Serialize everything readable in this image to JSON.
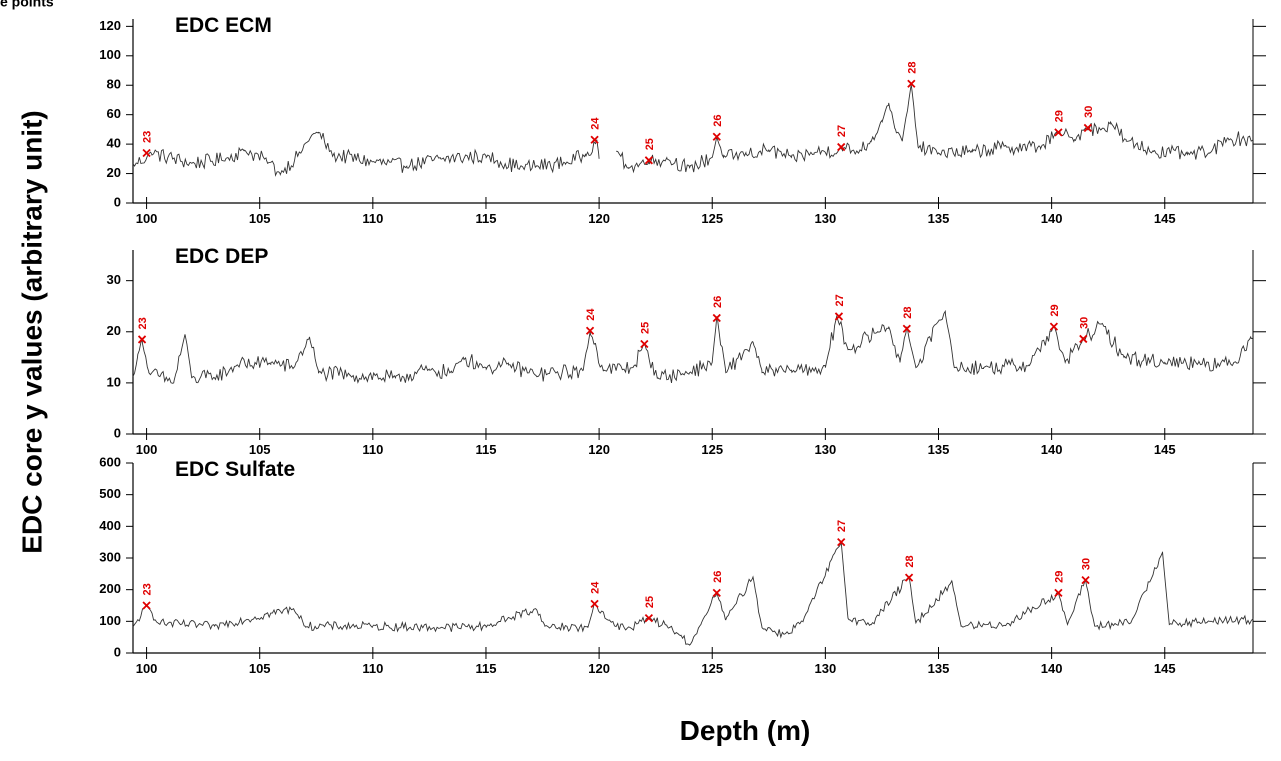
{
  "corner_label": "e points",
  "chart_data": {
    "type": "line",
    "ylabel": "EDC core y values (arbitrary unit)",
    "xlabel": "Depth (m)",
    "xlim": [
      99.4,
      148.9
    ],
    "x_ticks": [
      100,
      105,
      110,
      115,
      120,
      125,
      130,
      135,
      140,
      145
    ],
    "grid": false,
    "panels": [
      {
        "title": "EDC ECM",
        "ylim": [
          0,
          125
        ],
        "y_ticks": [
          0,
          20,
          40,
          60,
          80,
          100,
          120
        ],
        "gaps": [
          [
            120.0,
            120.7
          ]
        ],
        "baseline": 29,
        "noise": 5,
        "series": {
          "anchors": [
            [
              99.5,
              26
            ],
            [
              100.2,
              34
            ],
            [
              102,
              27
            ],
            [
              103.5,
              30
            ],
            [
              104.3,
              36
            ],
            [
              105.3,
              29
            ],
            [
              105.9,
              20
            ],
            [
              106.8,
              34
            ],
            [
              107.3,
              46
            ],
            [
              107.6,
              48
            ],
            [
              108.2,
              33
            ],
            [
              110,
              28
            ],
            [
              111.5,
              25
            ],
            [
              113,
              30
            ],
            [
              115,
              32
            ],
            [
              116.5,
              24
            ],
            [
              118.5,
              27
            ],
            [
              119.4,
              33
            ],
            [
              119.9,
              43
            ],
            [
              120.0,
              30
            ],
            [
              120.7,
              36
            ],
            [
              121.3,
              24
            ],
            [
              122.2,
              28
            ],
            [
              123,
              30
            ],
            [
              124,
              24
            ],
            [
              125,
              31
            ],
            [
              125.2,
              45
            ],
            [
              125.5,
              31
            ],
            [
              126.5,
              33
            ],
            [
              127.5,
              36
            ],
            [
              128.5,
              31
            ],
            [
              129.5,
              34
            ],
            [
              130.8,
              37
            ],
            [
              131.5,
              35
            ],
            [
              132,
              42
            ],
            [
              132.5,
              56
            ],
            [
              132.8,
              68
            ],
            [
              133.1,
              50
            ],
            [
              133.4,
              42
            ],
            [
              133.8,
              80
            ],
            [
              134.1,
              38
            ],
            [
              135,
              34
            ],
            [
              136.5,
              35
            ],
            [
              138,
              38
            ],
            [
              139.5,
              38
            ],
            [
              140.3,
              48
            ],
            [
              141,
              43
            ],
            [
              141.5,
              51
            ],
            [
              142.2,
              50
            ],
            [
              142.6,
              55
            ],
            [
              143.3,
              42
            ],
            [
              144.5,
              35
            ],
            [
              146,
              33
            ],
            [
              147,
              34
            ],
            [
              147.8,
              44
            ],
            [
              148.9,
              43
            ]
          ]
        },
        "events": [
          {
            "label": "23",
            "x": 100.0,
            "y": 34
          },
          {
            "label": "24",
            "x": 119.8,
            "y": 43
          },
          {
            "label": "25",
            "x": 122.2,
            "y": 29
          },
          {
            "label": "26",
            "x": 125.2,
            "y": 45
          },
          {
            "label": "27",
            "x": 130.7,
            "y": 38
          },
          {
            "label": "28",
            "x": 133.8,
            "y": 81
          },
          {
            "label": "29",
            "x": 140.3,
            "y": 48
          },
          {
            "label": "30",
            "x": 141.6,
            "y": 51
          }
        ]
      },
      {
        "title": "EDC DEP",
        "ylim": [
          0,
          36
        ],
        "y_ticks": [
          0,
          10,
          20,
          30
        ],
        "gaps": [],
        "baseline": 12.5,
        "noise": 1.5,
        "series": {
          "anchors": [
            [
              99.4,
              11
            ],
            [
              99.6,
              15
            ],
            [
              99.8,
              18.5
            ],
            [
              100.1,
              12
            ],
            [
              101.2,
              10
            ],
            [
              101.7,
              19.5
            ],
            [
              102,
              11
            ],
            [
              103,
              11
            ],
            [
              104,
              13.5
            ],
            [
              105.5,
              14
            ],
            [
              106.5,
              13
            ],
            [
              107.2,
              19
            ],
            [
              107.6,
              12
            ],
            [
              109,
              11.5
            ],
            [
              111,
              11
            ],
            [
              112.5,
              12.5
            ],
            [
              113.5,
              12
            ],
            [
              114,
              15
            ],
            [
              115,
              13
            ],
            [
              116,
              13.5
            ],
            [
              117.2,
              11.5
            ],
            [
              119.3,
              12.5
            ],
            [
              119.6,
              20
            ],
            [
              120.2,
              12.5
            ],
            [
              121.5,
              13
            ],
            [
              122,
              17.5
            ],
            [
              122.6,
              11
            ],
            [
              124,
              12
            ],
            [
              125,
              14
            ],
            [
              125.2,
              23
            ],
            [
              125.6,
              12
            ],
            [
              126.8,
              18
            ],
            [
              127.2,
              12
            ],
            [
              128.5,
              12.5
            ],
            [
              130,
              13
            ],
            [
              130.5,
              23
            ],
            [
              131,
              16.5
            ],
            [
              132.3,
              20
            ],
            [
              132.8,
              21
            ],
            [
              133.3,
              14
            ],
            [
              133.6,
              21
            ],
            [
              134,
              13
            ],
            [
              135.3,
              24
            ],
            [
              135.7,
              13
            ],
            [
              137,
              13
            ],
            [
              139,
              13.5
            ],
            [
              140.1,
              21
            ],
            [
              140.6,
              14
            ],
            [
              141.4,
              18.5
            ],
            [
              142.2,
              21.5
            ],
            [
              143.2,
              15
            ],
            [
              145,
              14
            ],
            [
              146.5,
              14
            ],
            [
              148,
              13.5
            ],
            [
              148.8,
              19
            ]
          ]
        },
        "events": [
          {
            "label": "23",
            "x": 99.8,
            "y": 18.5
          },
          {
            "label": "24",
            "x": 119.6,
            "y": 20.2
          },
          {
            "label": "25",
            "x": 122.0,
            "y": 17.6
          },
          {
            "label": "26",
            "x": 125.2,
            "y": 22.7
          },
          {
            "label": "27",
            "x": 130.6,
            "y": 23
          },
          {
            "label": "28",
            "x": 133.6,
            "y": 20.6
          },
          {
            "label": "29",
            "x": 140.1,
            "y": 21
          },
          {
            "label": "30",
            "x": 141.4,
            "y": 18.6
          }
        ]
      },
      {
        "title": "EDC Sulfate",
        "ylim": [
          0,
          600
        ],
        "y_ticks": [
          0,
          100,
          200,
          300,
          400,
          500,
          600
        ],
        "gaps": [],
        "baseline": 85,
        "noise": 14,
        "series": {
          "anchors": [
            [
              99.4,
              80
            ],
            [
              100,
              150
            ],
            [
              100.5,
              95
            ],
            [
              103,
              85
            ],
            [
              106.5,
              140
            ],
            [
              107,
              85
            ],
            [
              110,
              85
            ],
            [
              113,
              80
            ],
            [
              115,
              85
            ],
            [
              117.2,
              140
            ],
            [
              117.6,
              85
            ],
            [
              119.5,
              80
            ],
            [
              119.8,
              155
            ],
            [
              120.5,
              100
            ],
            [
              121.2,
              75
            ],
            [
              122.2,
              110
            ],
            [
              123,
              85
            ],
            [
              123.6,
              55
            ],
            [
              124,
              25
            ],
            [
              124.5,
              90
            ],
            [
              125.2,
              190
            ],
            [
              125.6,
              105
            ],
            [
              126.8,
              240
            ],
            [
              127.2,
              80
            ],
            [
              128.2,
              60
            ],
            [
              129,
              100
            ],
            [
              130.7,
              350
            ],
            [
              131,
              110
            ],
            [
              132,
              90
            ],
            [
              133.7,
              240
            ],
            [
              134,
              95
            ],
            [
              135.6,
              225
            ],
            [
              136,
              85
            ],
            [
              138,
              90
            ],
            [
              140.3,
              190
            ],
            [
              140.7,
              90
            ],
            [
              141.5,
              230
            ],
            [
              141.9,
              85
            ],
            [
              143.5,
              95
            ],
            [
              144.9,
              320
            ],
            [
              145.2,
              90
            ],
            [
              147,
              100
            ],
            [
              148.9,
              105
            ]
          ]
        },
        "events": [
          {
            "label": "23",
            "x": 100.0,
            "y": 150
          },
          {
            "label": "24",
            "x": 119.8,
            "y": 155
          },
          {
            "label": "25",
            "x": 122.2,
            "y": 110
          },
          {
            "label": "26",
            "x": 125.2,
            "y": 190
          },
          {
            "label": "27",
            "x": 130.7,
            "y": 350
          },
          {
            "label": "28",
            "x": 133.7,
            "y": 238
          },
          {
            "label": "29",
            "x": 140.3,
            "y": 190
          },
          {
            "label": "30",
            "x": 141.5,
            "y": 230
          }
        ]
      }
    ]
  }
}
